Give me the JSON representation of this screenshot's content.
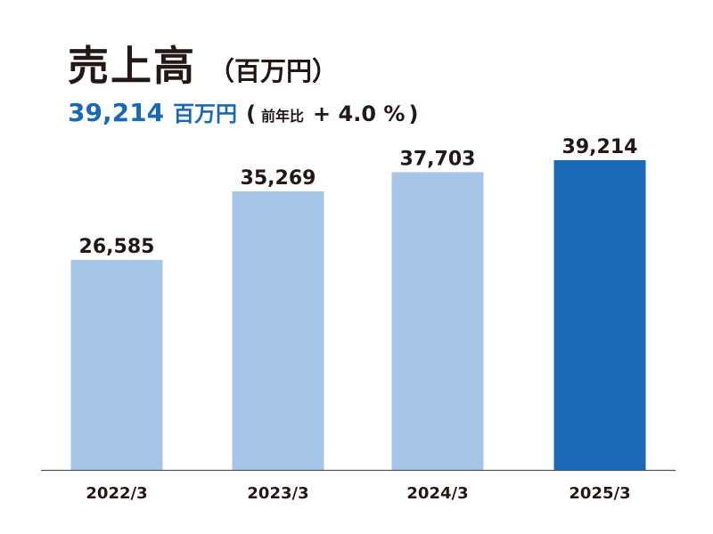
{
  "header": {
    "title": "売上高",
    "unit": "（百万円）",
    "value": "39,214",
    "value_unit": "百万円",
    "paren_open": "(",
    "yoy_label": "前年比",
    "yoy_value": "+ 4.0 %",
    "paren_close": ")"
  },
  "chart_data": {
    "type": "bar",
    "categories": [
      "2022/3",
      "2023/3",
      "2024/3",
      "2025/3"
    ],
    "values": [
      26585,
      35269,
      37703,
      39214
    ],
    "value_labels": [
      "26,585",
      "35,269",
      "37,703",
      "39,214"
    ],
    "title": "売上高",
    "xlabel": "",
    "ylabel": "",
    "ylim": [
      0,
      39214
    ],
    "grid": false,
    "colors": {
      "past": "#a7c6e7",
      "current": "#1b69b6",
      "axis": "#555555",
      "text": "#231815"
    }
  }
}
